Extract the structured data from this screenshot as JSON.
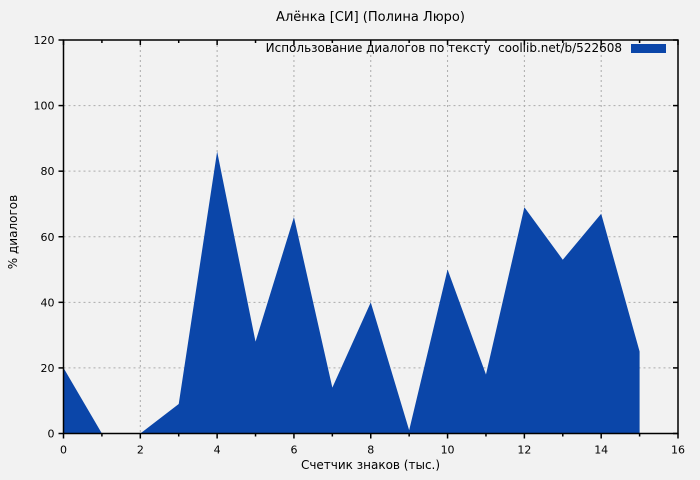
{
  "title": "Алёнка [СИ] (Полина Люро)",
  "legend": {
    "label": "Использование диалогов по тексту  coollib.net/b/522608"
  },
  "colors": {
    "background": "#f2f2f2",
    "series": "#0b46a9",
    "grid": "#ababab",
    "axis": "#000000",
    "text": "#000000"
  },
  "chart_data": {
    "type": "area",
    "title": "Алёнка [СИ] (Полина Люро)",
    "series_label": "Использование диалогов по тексту  coollib.net/b/522608",
    "x": [
      0,
      1,
      2,
      3,
      4,
      5,
      6,
      7,
      8,
      9,
      10,
      11,
      12,
      13,
      14,
      15
    ],
    "values": [
      20,
      0,
      0,
      9,
      86,
      28,
      66,
      14,
      40,
      1,
      50,
      18,
      69,
      53,
      67,
      25
    ],
    "xlabel": "Счетчик знаков (тыс.)",
    "ylabel": "% диалогов",
    "xlim": [
      0,
      16
    ],
    "ylim": [
      0,
      120
    ],
    "xticks": [
      0,
      2,
      4,
      6,
      8,
      10,
      12,
      14,
      16
    ],
    "xticks_minor": [
      1,
      3,
      5,
      7,
      9,
      11,
      13,
      15
    ],
    "yticks": [
      0,
      20,
      40,
      60,
      80,
      100,
      120
    ],
    "grid": true,
    "grid_style": "dashed",
    "legend_position": "top-right",
    "fill_to": 0
  }
}
